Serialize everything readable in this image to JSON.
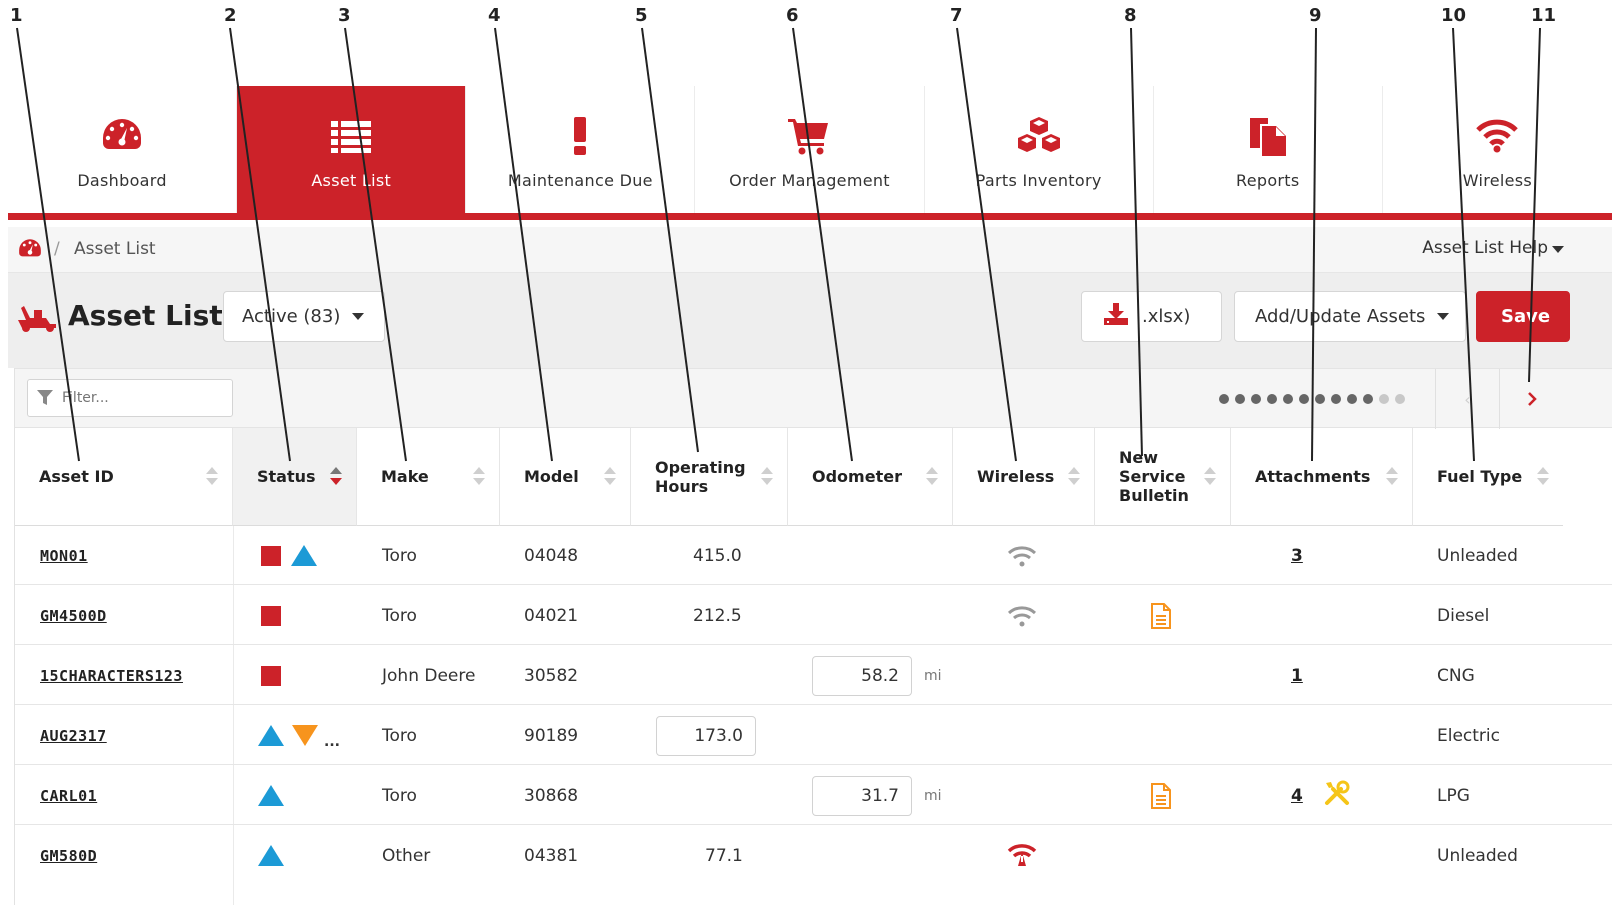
{
  "nav": {
    "items": [
      {
        "label": "Dashboard",
        "icon": "speedometer-icon"
      },
      {
        "label": "Asset List",
        "icon": "list-icon"
      },
      {
        "label": "Maintenance Due",
        "icon": "exclamation-icon"
      },
      {
        "label": "Order Management",
        "icon": "cart-icon"
      },
      {
        "label": "Parts Inventory",
        "icon": "cubes-icon"
      },
      {
        "label": "Reports",
        "icon": "documents-icon"
      },
      {
        "label": "Wireless",
        "icon": "wifi-icon"
      }
    ],
    "active": "Asset List"
  },
  "breadcrumb": {
    "separator": "/",
    "current": "Asset List"
  },
  "help": {
    "label": "Asset List Help"
  },
  "title": {
    "label": "Asset List"
  },
  "status_filter": {
    "label": "Active (83)"
  },
  "export": {
    "label": ".xlsx)"
  },
  "add_update": {
    "label": "Add/Update Assets"
  },
  "save": {
    "label": "Save"
  },
  "filter": {
    "placeholder": "Filter..."
  },
  "pagination": {
    "dots_dark": 10,
    "dots_light": 2
  },
  "columns": [
    {
      "label": "Asset ID"
    },
    {
      "label": "Status"
    },
    {
      "label": "Make"
    },
    {
      "label": "Model"
    },
    {
      "label": "Operating Hours"
    },
    {
      "label": "Odometer"
    },
    {
      "label": "Wireless"
    },
    {
      "label": "New Service Bulletin"
    },
    {
      "label": "Attachments"
    },
    {
      "label": "Fuel Type"
    }
  ],
  "rows": [
    {
      "asset_id": "MON01",
      "make": "Toro",
      "model": "04048",
      "hours": "415.0",
      "fuel": "Unleaded",
      "attachments": "3"
    },
    {
      "asset_id": "GM4500D",
      "make": "Toro",
      "model": "04021",
      "hours": "212.5",
      "fuel": "Diesel"
    },
    {
      "asset_id": "15CHARACTERS123",
      "make": "John Deere",
      "model": "30582",
      "odometer": "58.2",
      "odometer_unit": "mi",
      "fuel": "CNG",
      "attachments": "1"
    },
    {
      "asset_id": "AUG2317",
      "make": "Toro",
      "model": "90189",
      "hours_input": "173.0",
      "fuel": "Electric",
      "status_more": "..."
    },
    {
      "asset_id": "CARL01",
      "make": "Toro",
      "model": "30868",
      "odometer": "31.7",
      "odometer_unit": "mi",
      "fuel": "LPG",
      "attachments": "4"
    },
    {
      "asset_id": "GM580D",
      "make": "Other",
      "model": "04381",
      "hours": "77.1",
      "fuel": "Unleaded"
    }
  ],
  "callouts": [
    "1",
    "2",
    "3",
    "4",
    "5",
    "6",
    "7",
    "8",
    "9",
    "10",
    "11"
  ],
  "colors": {
    "brand_red": "#cc2229",
    "status_blue": "#1c9ad6",
    "status_orange": "#f7941d",
    "bulletin_orange": "#f7941d",
    "tool_yellow": "#f5c518"
  }
}
